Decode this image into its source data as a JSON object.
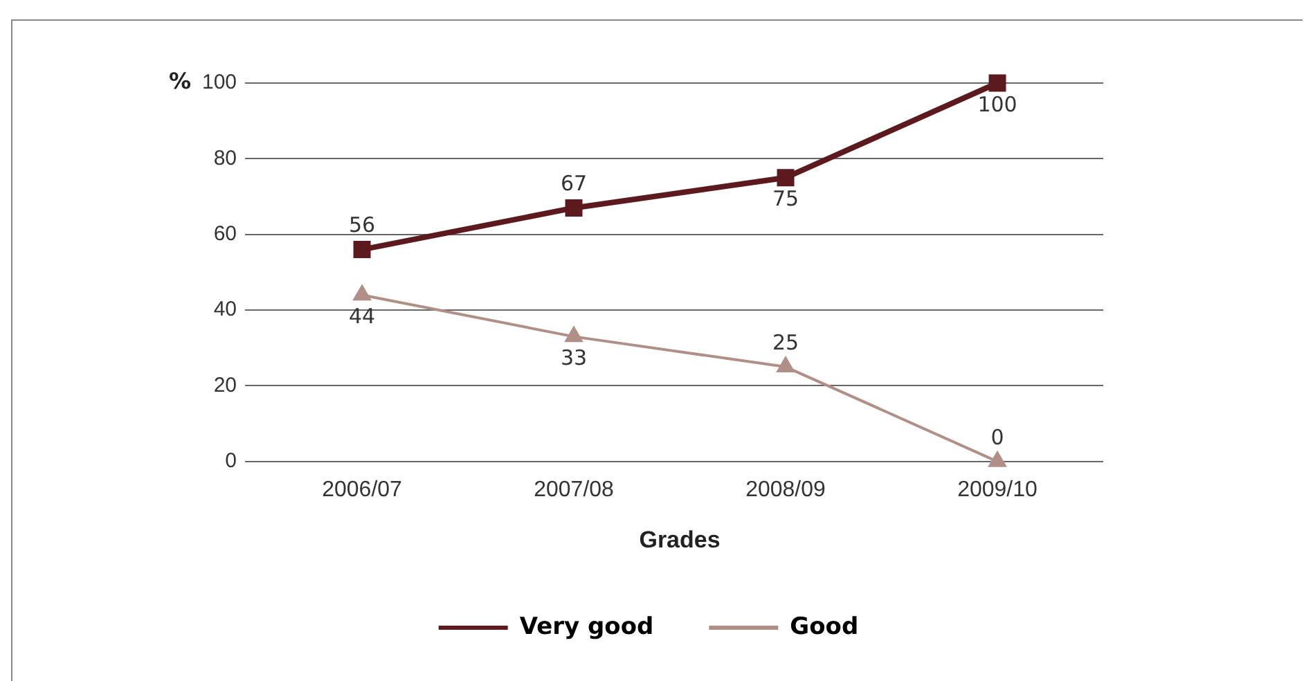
{
  "chart_data": {
    "type": "line",
    "xlabel": "Grades",
    "ylabel": "%",
    "categories": [
      "2006/07",
      "2007/08",
      "2008/09",
      "2009/10"
    ],
    "series": [
      {
        "name": "Very good",
        "color": "#5c1a1e",
        "values": [
          56,
          67,
          75,
          100
        ],
        "marker": "square"
      },
      {
        "name": "Good",
        "color": "#b08f86",
        "values": [
          44,
          33,
          25,
          0
        ],
        "marker": "triangle"
      }
    ],
    "ylim": [
      0,
      100
    ],
    "yticks": [
      0,
      20,
      40,
      60,
      80,
      100
    ],
    "grid": "y",
    "legend": "bottom",
    "data_labels": true,
    "line_style": "solid"
  }
}
